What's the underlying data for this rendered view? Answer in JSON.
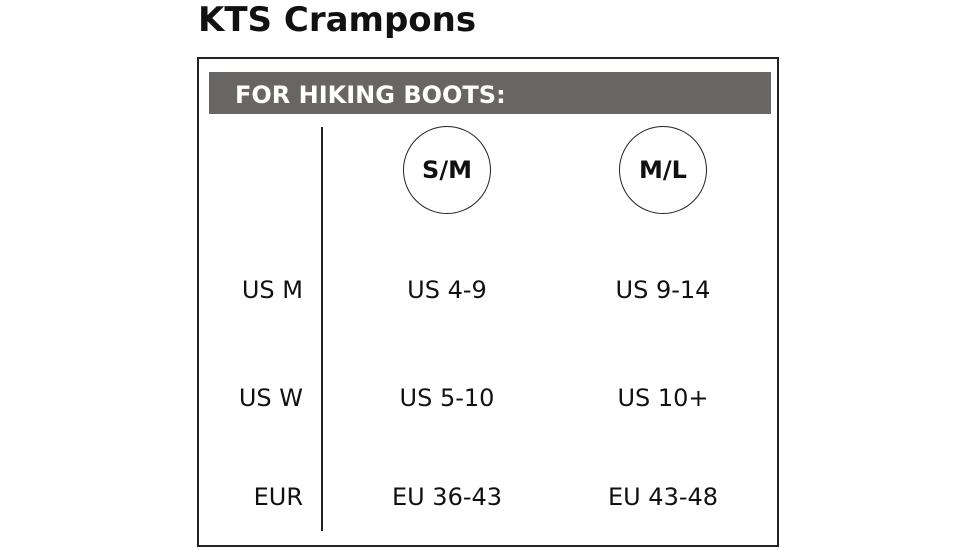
{
  "header": {
    "title": "KTS Crampons"
  },
  "table": {
    "section": "FOR HIKING BOOTS:",
    "columns": [
      "S/M",
      "M/L"
    ],
    "rows": [
      [
        "US M",
        "US 4-9",
        "US 9-14"
      ],
      [
        "US W",
        "US 5-10",
        "US 10+"
      ],
      [
        "EUR",
        "EU 36-43",
        "EU 43-48"
      ]
    ]
  }
}
